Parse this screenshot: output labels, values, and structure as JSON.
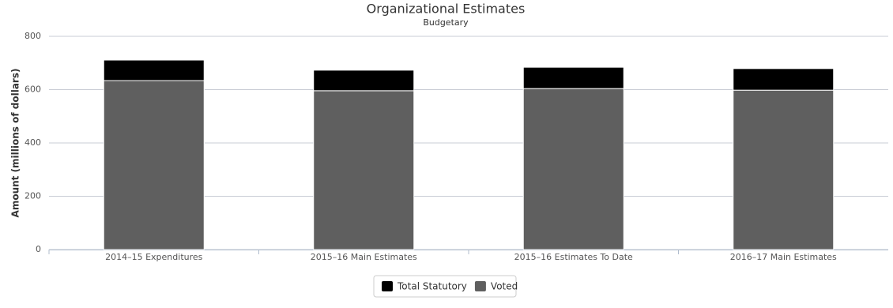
{
  "chart_data": {
    "type": "bar",
    "stacked": true,
    "title": "Organizational Estimates",
    "subtitle": "Budgetary",
    "y_label": "Amount (millions of dollars)",
    "categories": [
      "2014–15 Expenditures",
      "2015–16 Main Estimates",
      "2015–16 Estimates To Date",
      "2016–17 Main Estimates"
    ],
    "series": [
      {
        "name": "Total Statutory",
        "color": "#000000",
        "values": [
          77,
          77,
          80,
          81
        ]
      },
      {
        "name": "Voted",
        "color": "#5f5f5f",
        "values": [
          634,
          596,
          604,
          598
        ]
      }
    ],
    "ylim": [
      0,
      800
    ],
    "yticks": [
      0,
      200,
      400,
      600,
      800
    ],
    "grid": true
  }
}
